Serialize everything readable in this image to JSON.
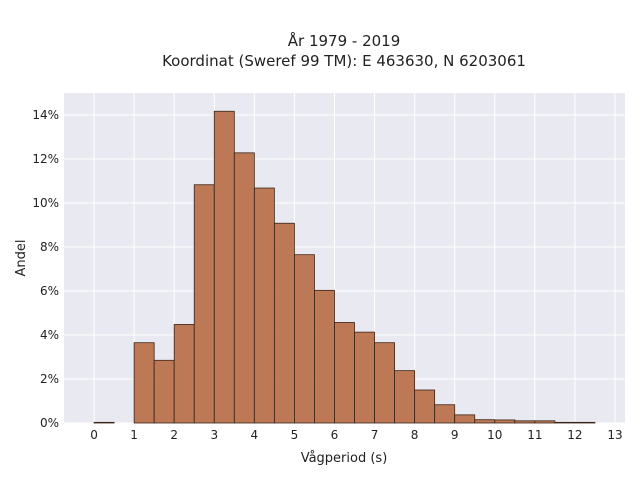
{
  "chart_data": {
    "type": "bar",
    "title": "År 1979 - 2019",
    "subtitle": "Koordinat (Sweref 99 TM): E 463630, N 6203061",
    "xlabel": "Vågperiod (s)",
    "ylabel": "Andel",
    "xlim": [
      -0.75,
      13.25
    ],
    "ylim": [
      0,
      0.15
    ],
    "x_ticks": [
      0,
      1,
      2,
      3,
      4,
      5,
      6,
      7,
      8,
      9,
      10,
      11,
      12,
      13
    ],
    "y_ticks": [
      0,
      0.02,
      0.04,
      0.06,
      0.08,
      0.1,
      0.12,
      0.14
    ],
    "y_tick_labels": [
      "0%",
      "2%",
      "4%",
      "6%",
      "8%",
      "10%",
      "12%",
      "14%"
    ],
    "bin_width": 0.5,
    "grid": true,
    "bars": [
      {
        "x_start": 0.0,
        "value": 0.0003
      },
      {
        "x_start": 0.5,
        "value": 0.0
      },
      {
        "x_start": 1.0,
        "value": 0.0365
      },
      {
        "x_start": 1.5,
        "value": 0.0285
      },
      {
        "x_start": 2.0,
        "value": 0.0448
      },
      {
        "x_start": 2.5,
        "value": 0.1083
      },
      {
        "x_start": 3.0,
        "value": 0.1417
      },
      {
        "x_start": 3.5,
        "value": 0.1228
      },
      {
        "x_start": 4.0,
        "value": 0.1068
      },
      {
        "x_start": 4.5,
        "value": 0.0908
      },
      {
        "x_start": 5.0,
        "value": 0.0765
      },
      {
        "x_start": 5.5,
        "value": 0.0603
      },
      {
        "x_start": 6.0,
        "value": 0.0457
      },
      {
        "x_start": 6.5,
        "value": 0.0413
      },
      {
        "x_start": 7.0,
        "value": 0.0365
      },
      {
        "x_start": 7.5,
        "value": 0.0238
      },
      {
        "x_start": 8.0,
        "value": 0.015
      },
      {
        "x_start": 8.5,
        "value": 0.0083
      },
      {
        "x_start": 9.0,
        "value": 0.0037
      },
      {
        "x_start": 9.5,
        "value": 0.0015
      },
      {
        "x_start": 10.0,
        "value": 0.0014
      },
      {
        "x_start": 10.5,
        "value": 0.001
      },
      {
        "x_start": 11.0,
        "value": 0.001
      },
      {
        "x_start": 11.5,
        "value": 0.0003
      },
      {
        "x_start": 12.0,
        "value": 0.0003
      }
    ],
    "colors": {
      "bar_fill": "#b5643a",
      "bar_edge": "#3a2418",
      "plot_background": "#e9e9f1"
    }
  }
}
